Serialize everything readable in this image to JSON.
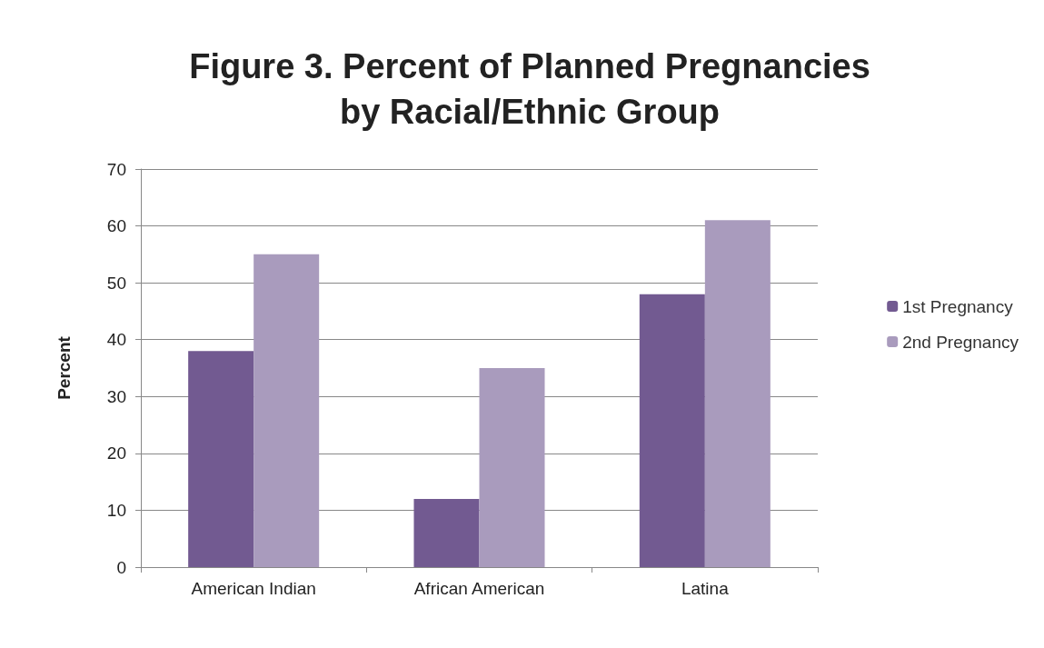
{
  "chart_data": {
    "type": "bar",
    "title": "Figure 3. Percent of Planned Pregnancies\nby Racial/Ethnic Group",
    "ylabel": "Percent",
    "categories": [
      "American Indian",
      "African American",
      "Latina"
    ],
    "series": [
      {
        "name": "1st Pregnancy",
        "color": "#725a91",
        "values": [
          38,
          12,
          48
        ]
      },
      {
        "name": "2nd Pregnancy",
        "color": "#a99bbd",
        "values": [
          55,
          35,
          61
        ]
      }
    ],
    "ylim": [
      0,
      70
    ],
    "yticks": [
      0,
      10,
      20,
      30,
      40,
      50,
      60,
      70
    ],
    "grid": "y",
    "legend": "right"
  }
}
